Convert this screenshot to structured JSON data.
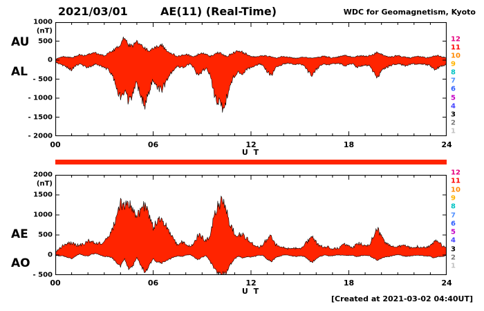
{
  "header": {
    "date": "2021/03/01",
    "title": "AE(11) (Real-Time)",
    "source": "WDC for Geomagnetism, Kyoto"
  },
  "footer": {
    "created": "[Created at 2021-03-02 04:40UT]"
  },
  "colors": {
    "trace_fill": "#ff2400",
    "availability": "#ff2400",
    "outline": "#000000"
  },
  "station_legend": {
    "numbers": [
      "12",
      "11",
      "10",
      "9",
      "8",
      "7",
      "6",
      "5",
      "4",
      "3",
      "2",
      "1"
    ],
    "colors": [
      "#e6007e",
      "#ff0000",
      "#ff8800",
      "#ffb300",
      "#00c3c3",
      "#4f8fff",
      "#2f5fff",
      "#c400c4",
      "#4444ff",
      "#000000",
      "#777777",
      "#c0c0c0"
    ]
  },
  "top_panel": {
    "left_labels": [
      "AU",
      "AL"
    ],
    "unit": "(nT)",
    "ytick_labels": [
      "1000",
      "500",
      "0",
      "- 500",
      "- 1000",
      "- 1500",
      "- 2000"
    ],
    "xtick_labels": [
      "00",
      "06",
      "12",
      "18",
      "24"
    ],
    "xlabel": "U T"
  },
  "bottom_panel": {
    "left_labels": [
      "AE",
      "AO"
    ],
    "unit": "(nT)",
    "ytick_labels": [
      "2000",
      "1500",
      "1000",
      "500",
      "0",
      "- 500"
    ],
    "xtick_labels": [
      "00",
      "06",
      "12",
      "18",
      "24"
    ],
    "xlabel": "U T"
  },
  "chart_data": [
    {
      "type": "area",
      "title": "AU / AL auroral electrojet indices, 2021/03/01",
      "xlabel": "U T",
      "ylabel": "nT",
      "xlim": [
        0,
        24
      ],
      "ylim": [
        -2000,
        1000
      ],
      "x_start": 0,
      "x_step_hours": 0.25,
      "xtick_hours": [
        0,
        6,
        12,
        18,
        24
      ],
      "ytick_values": [
        1000,
        500,
        0,
        -500,
        -1000,
        -1500,
        -2000
      ],
      "grid": false,
      "series": [
        {
          "name": "AU",
          "values": [
            20,
            60,
            100,
            80,
            60,
            100,
            150,
            120,
            150,
            200,
            180,
            150,
            120,
            180,
            250,
            300,
            450,
            600,
            400,
            350,
            500,
            450,
            300,
            250,
            300,
            350,
            400,
            300,
            200,
            150,
            100,
            120,
            150,
            120,
            100,
            150,
            200,
            150,
            100,
            150,
            200,
            150,
            100,
            150,
            200,
            250,
            200,
            150,
            100,
            80,
            100,
            120,
            100,
            80,
            60,
            80,
            100,
            80,
            60,
            50,
            60,
            80,
            60,
            50,
            60,
            80,
            100,
            80,
            60,
            80,
            100,
            120,
            100,
            80,
            100,
            120,
            100,
            120,
            150,
            200,
            150,
            100,
            80,
            100,
            120,
            100,
            80,
            60,
            80,
            100,
            80,
            60,
            80,
            100,
            120,
            80,
            60
          ]
        },
        {
          "name": "AL",
          "values": [
            -50,
            -100,
            -150,
            -200,
            -250,
            -150,
            -100,
            -150,
            -200,
            -150,
            -100,
            -150,
            -200,
            -250,
            -400,
            -700,
            -1000,
            -800,
            -1100,
            -900,
            -600,
            -1000,
            -1150,
            -800,
            -500,
            -700,
            -800,
            -600,
            -400,
            -250,
            -150,
            -200,
            -150,
            -100,
            -200,
            -400,
            -300,
            -200,
            -400,
            -900,
            -1100,
            -1300,
            -1000,
            -600,
            -400,
            -300,
            -350,
            -250,
            -200,
            -150,
            -100,
            -150,
            -300,
            -400,
            -200,
            -150,
            -100,
            -80,
            -100,
            -120,
            -100,
            -150,
            -300,
            -400,
            -250,
            -150,
            -100,
            -120,
            -100,
            -80,
            -100,
            -150,
            -120,
            -100,
            -200,
            -150,
            -120,
            -150,
            -300,
            -450,
            -300,
            -200,
            -150,
            -120,
            -100,
            -120,
            -150,
            -120,
            -100,
            -120,
            -100,
            -120,
            -150,
            -250,
            -200,
            -150,
            -100
          ]
        }
      ]
    },
    {
      "type": "area",
      "title": "AE / AO auroral electrojet indices, 2021/03/01",
      "xlabel": "U T",
      "ylabel": "nT",
      "xlim": [
        0,
        24
      ],
      "ylim": [
        -500,
        2000
      ],
      "x_start": 0,
      "x_step_hours": 0.25,
      "xtick_hours": [
        0,
        6,
        12,
        18,
        24
      ],
      "ytick_values": [
        2000,
        1500,
        1000,
        500,
        0,
        -500
      ],
      "grid": false,
      "series": [
        {
          "name": "AE",
          "values": [
            70,
            160,
            250,
            280,
            310,
            250,
            250,
            270,
            350,
            350,
            280,
            300,
            320,
            430,
            650,
            1000,
            1250,
            1200,
            1300,
            1150,
            900,
            1200,
            1250,
            950,
            700,
            850,
            950,
            750,
            550,
            400,
            250,
            320,
            300,
            220,
            300,
            500,
            450,
            350,
            500,
            1000,
            1250,
            1350,
            1100,
            700,
            550,
            500,
            500,
            400,
            300,
            230,
            200,
            270,
            400,
            480,
            260,
            230,
            200,
            160,
            160,
            170,
            160,
            230,
            360,
            450,
            310,
            230,
            200,
            200,
            160,
            160,
            200,
            270,
            220,
            180,
            300,
            270,
            220,
            270,
            450,
            650,
            450,
            300,
            230,
            220,
            220,
            220,
            230,
            180,
            180,
            220,
            180,
            180,
            230,
            350,
            320,
            230,
            160
          ]
        },
        {
          "name": "AO",
          "values": [
            -15,
            -20,
            -25,
            -60,
            -95,
            -25,
            25,
            -15,
            -25,
            25,
            40,
            0,
            -40,
            -35,
            -75,
            -200,
            -275,
            -100,
            -350,
            -275,
            -50,
            -275,
            -420,
            -275,
            -100,
            -175,
            -200,
            -150,
            -100,
            -50,
            -25,
            -40,
            0,
            10,
            -50,
            -125,
            -50,
            -25,
            -150,
            -375,
            -450,
            -460,
            -450,
            -225,
            -100,
            -25,
            -75,
            -50,
            -50,
            -35,
            0,
            -15,
            -100,
            -160,
            -70,
            -35,
            0,
            0,
            -20,
            -35,
            -20,
            -35,
            -120,
            -175,
            -95,
            -35,
            0,
            -20,
            -20,
            0,
            0,
            -15,
            -10,
            -10,
            -50,
            -15,
            -10,
            -15,
            -75,
            -125,
            -75,
            -50,
            -35,
            -10,
            10,
            -10,
            -35,
            -30,
            -10,
            -10,
            -10,
            -30,
            -35,
            -75,
            -40,
            -35,
            -10
          ]
        }
      ]
    }
  ]
}
